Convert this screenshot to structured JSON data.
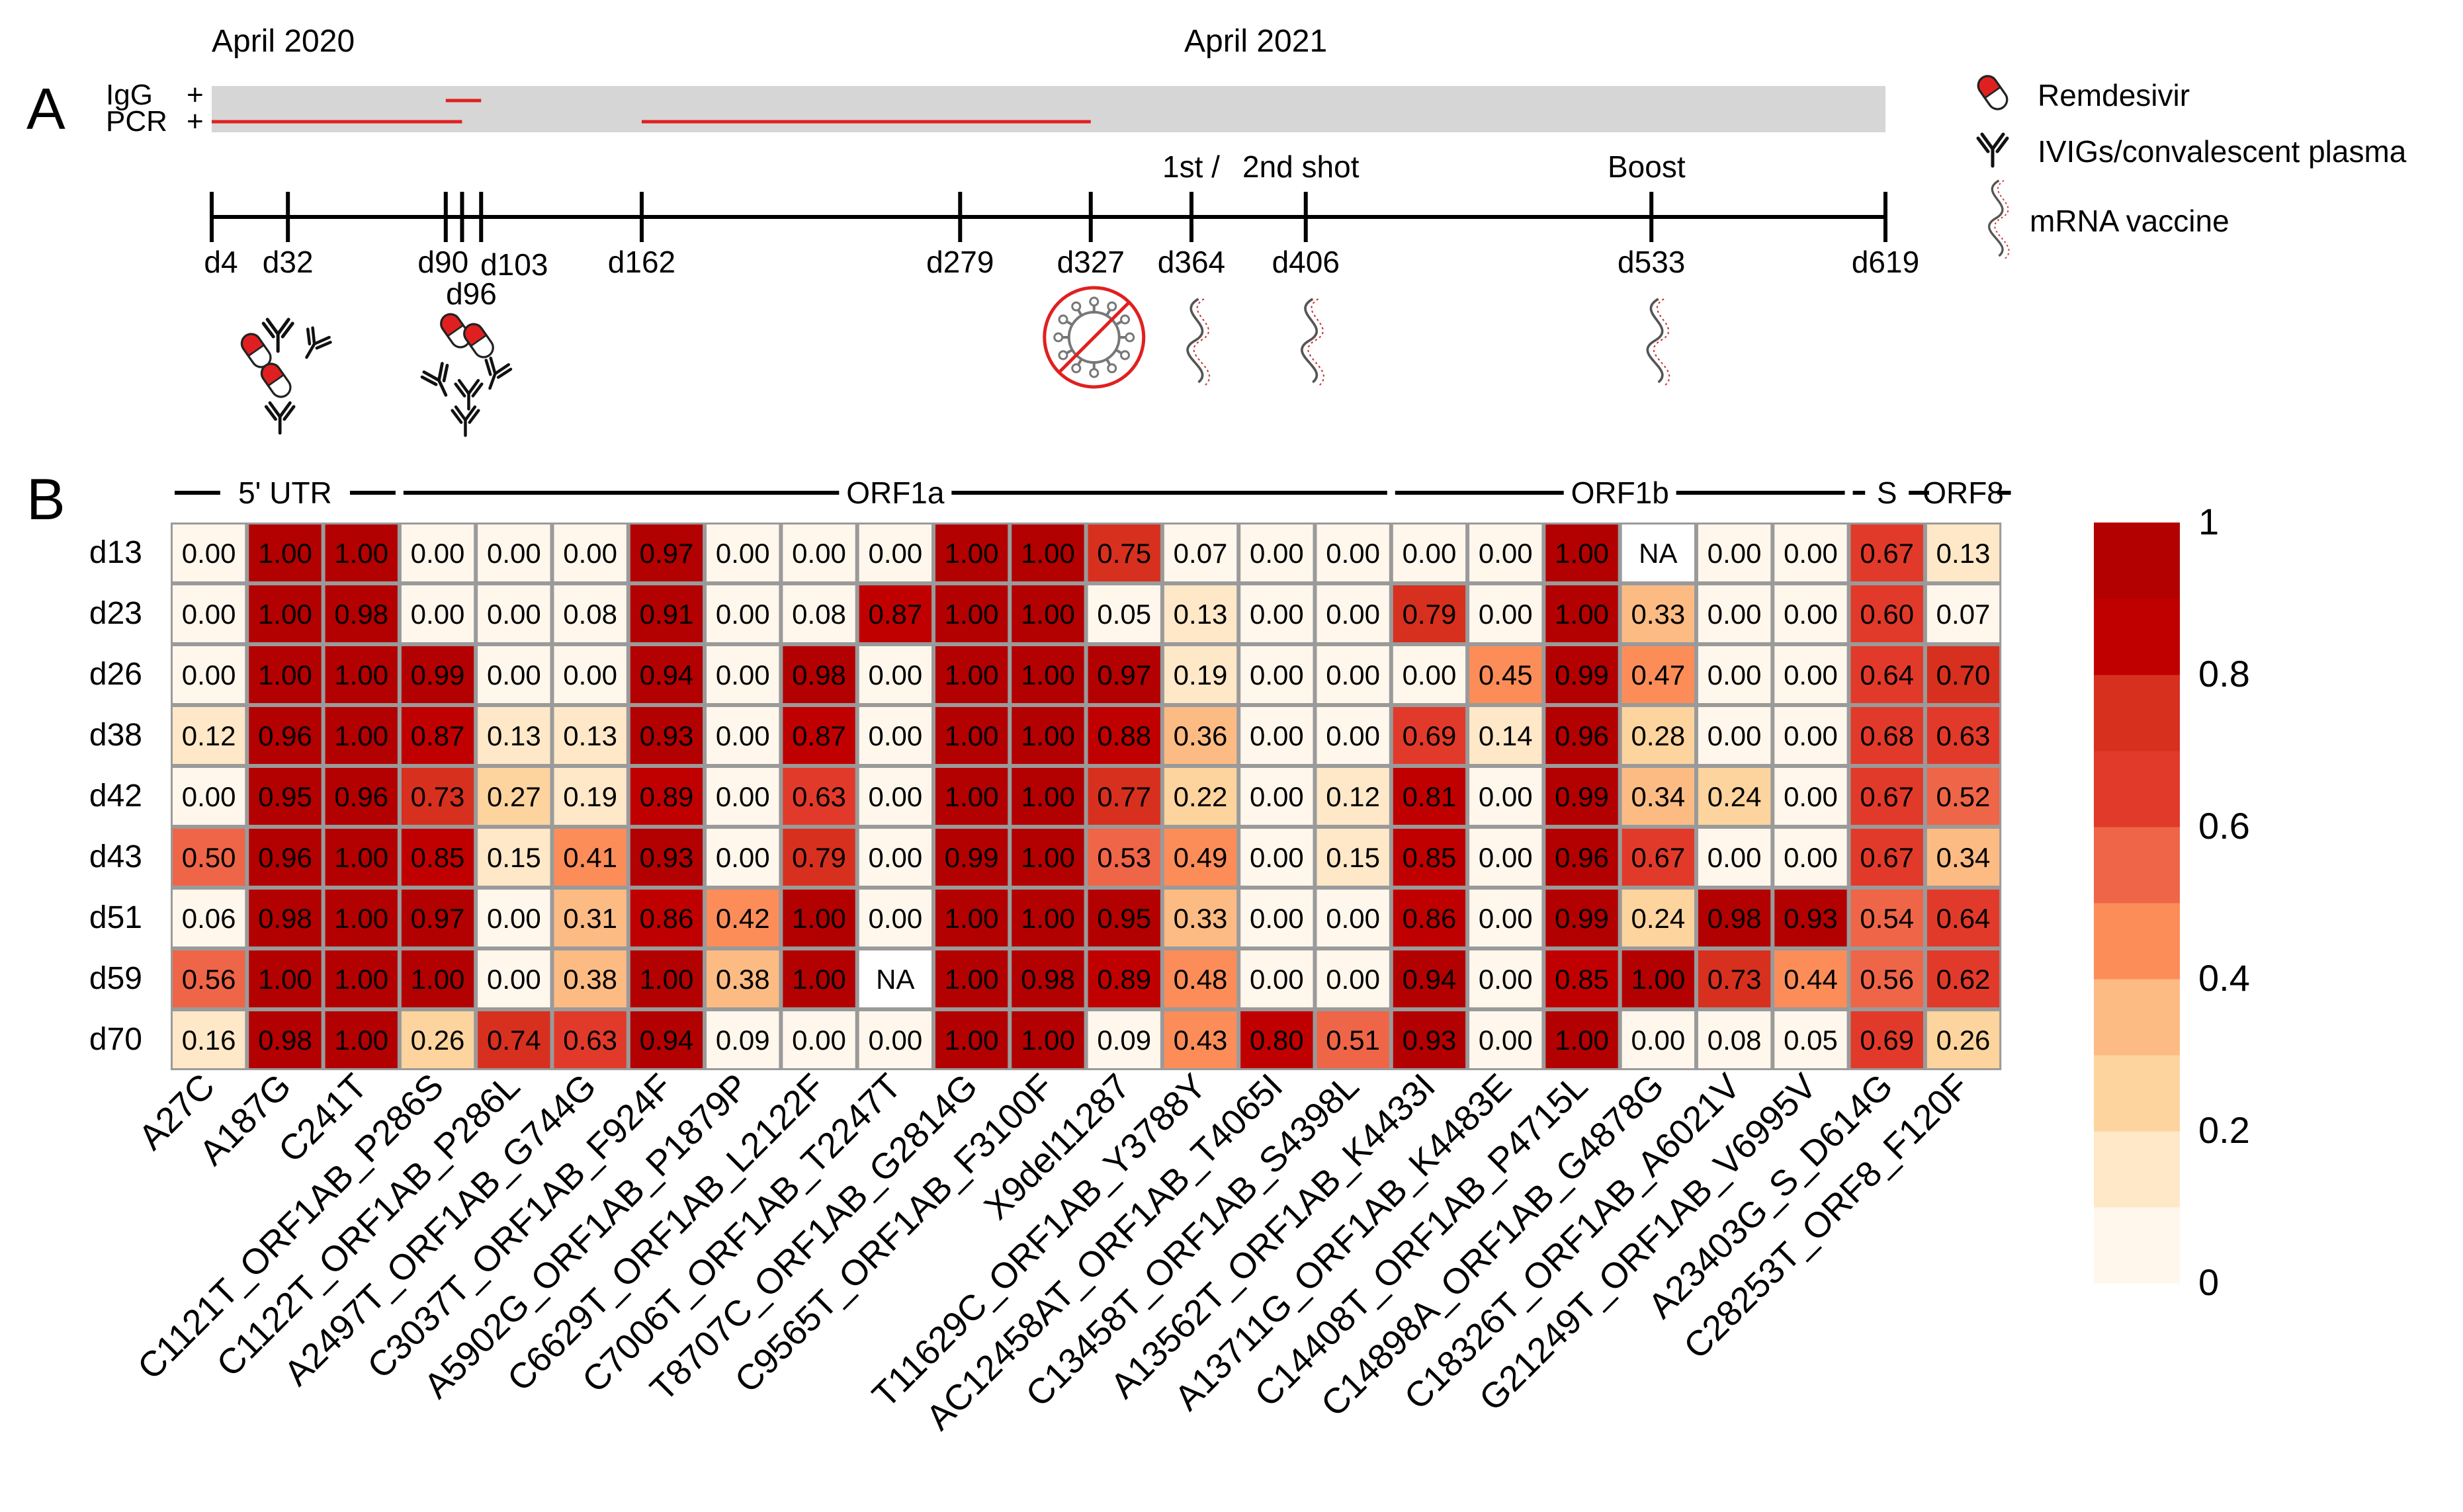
{
  "panel_a": {
    "label": "A",
    "dates": {
      "start": "April 2020",
      "mid": "April 2021"
    },
    "tracks": [
      {
        "label": "IgG",
        "sign": "+",
        "positive_intervals": [
          [
            90,
            103
          ]
        ]
      },
      {
        "label": "PCR",
        "sign": "+",
        "positive_intervals": [
          [
            4,
            96
          ],
          [
            162,
            327
          ]
        ]
      }
    ],
    "track_end_day": 619,
    "days": [
      {
        "day": 4,
        "label": "d4"
      },
      {
        "day": 32,
        "label": "d32"
      },
      {
        "day": 90,
        "label": "d90"
      },
      {
        "day": 96,
        "label": "d96"
      },
      {
        "day": 103,
        "label": "d103"
      },
      {
        "day": 162,
        "label": "d162"
      },
      {
        "day": 279,
        "label": "d279"
      },
      {
        "day": 327,
        "label": "d327"
      },
      {
        "day": 364,
        "label": "d364"
      },
      {
        "day": 406,
        "label": "d406"
      },
      {
        "day": 533,
        "label": "d533"
      },
      {
        "day": 619,
        "label": "d619"
      }
    ],
    "shot_labels": {
      "first": "1st /",
      "second": "2nd shot",
      "boost": "Boost"
    },
    "events": [
      {
        "day": 32,
        "kind": "remdesivir+ivig"
      },
      {
        "day": 96,
        "kind": "remdesivir+ivig"
      },
      {
        "day": 327,
        "kind": "virus-cleared"
      },
      {
        "day": 364,
        "kind": "vaccine"
      },
      {
        "day": 406,
        "kind": "vaccine"
      },
      {
        "day": 533,
        "kind": "vaccine"
      }
    ],
    "legend": [
      {
        "icon": "pill-icon",
        "label": "Remdesivir"
      },
      {
        "icon": "antibody-icon",
        "label": "IVIGs/convalescent plasma"
      },
      {
        "icon": "mrna-icon",
        "label": "mRNA vaccine"
      }
    ]
  },
  "chart_data": {
    "type": "heatmap",
    "panel_label": "B",
    "title": "",
    "rows": [
      "d13",
      "d23",
      "d26",
      "d38",
      "d42",
      "d43",
      "d51",
      "d59",
      "d70"
    ],
    "columns": [
      "A27C",
      "A187G",
      "C241T",
      "C1121T_ORF1AB_P286S",
      "C1122T_ORF1AB_P286L",
      "A2497T_ORF1AB_G744G",
      "C3037T_ORF1AB_F924F",
      "A5902G_ORF1AB_P1879P",
      "C6629T_ORF1AB_L2122F",
      "C7006T_ORF1AB_T2247T",
      "T8707C_ORF1AB_G2814G",
      "C9565T_ORF1AB_F3100F",
      "X9del11287",
      "T11629C_ORF1AB_Y3788Y",
      "AC12458AT_ORF1AB_T4065I",
      "C13458T_ORF1AB_S4398L",
      "A13562T_ORF1AB_K4433I",
      "A13711G_ORF1AB_K4483E",
      "C14408T_ORF1AB_P4715L",
      "C14898A_ORF1AB_G4878G",
      "C18326T_ORF1AB_A6021V",
      "G21249T_ORF1AB_V6995V",
      "A23403G_S_D614G",
      "C28253T_ORF8_F120F"
    ],
    "values": [
      [
        "0.00",
        "1.00",
        "1.00",
        "0.00",
        "0.00",
        "0.00",
        "0.97",
        "0.00",
        "0.00",
        "0.00",
        "1.00",
        "1.00",
        "0.75",
        "0.07",
        "0.00",
        "0.00",
        "0.00",
        "0.00",
        "1.00",
        "NA",
        "0.00",
        "0.00",
        "0.67",
        "0.13"
      ],
      [
        "0.00",
        "1.00",
        "0.98",
        "0.00",
        "0.00",
        "0.08",
        "0.91",
        "0.00",
        "0.08",
        "0.87",
        "1.00",
        "1.00",
        "0.05",
        "0.13",
        "0.00",
        "0.00",
        "0.79",
        "0.00",
        "1.00",
        "0.33",
        "0.00",
        "0.00",
        "0.60",
        "0.07"
      ],
      [
        "0.00",
        "1.00",
        "1.00",
        "0.99",
        "0.00",
        "0.00",
        "0.94",
        "0.00",
        "0.98",
        "0.00",
        "1.00",
        "1.00",
        "0.97",
        "0.19",
        "0.00",
        "0.00",
        "0.00",
        "0.45",
        "0.99",
        "0.47",
        "0.00",
        "0.00",
        "0.64",
        "0.70"
      ],
      [
        "0.12",
        "0.96",
        "1.00",
        "0.87",
        "0.13",
        "0.13",
        "0.93",
        "0.00",
        "0.87",
        "0.00",
        "1.00",
        "1.00",
        "0.88",
        "0.36",
        "0.00",
        "0.00",
        "0.69",
        "0.14",
        "0.96",
        "0.28",
        "0.00",
        "0.00",
        "0.68",
        "0.63"
      ],
      [
        "0.00",
        "0.95",
        "0.96",
        "0.73",
        "0.27",
        "0.19",
        "0.89",
        "0.00",
        "0.63",
        "0.00",
        "1.00",
        "1.00",
        "0.77",
        "0.22",
        "0.00",
        "0.12",
        "0.81",
        "0.00",
        "0.99",
        "0.34",
        "0.24",
        "0.00",
        "0.67",
        "0.52"
      ],
      [
        "0.50",
        "0.96",
        "1.00",
        "0.85",
        "0.15",
        "0.41",
        "0.93",
        "0.00",
        "0.79",
        "0.00",
        "0.99",
        "1.00",
        "0.53",
        "0.49",
        "0.00",
        "0.15",
        "0.85",
        "0.00",
        "0.96",
        "0.67",
        "0.00",
        "0.00",
        "0.67",
        "0.34"
      ],
      [
        "0.06",
        "0.98",
        "1.00",
        "0.97",
        "0.00",
        "0.31",
        "0.86",
        "0.42",
        "1.00",
        "0.00",
        "1.00",
        "1.00",
        "0.95",
        "0.33",
        "0.00",
        "0.00",
        "0.86",
        "0.00",
        "0.99",
        "0.24",
        "0.98",
        "0.93",
        "0.54",
        "0.64"
      ],
      [
        "0.56",
        "1.00",
        "1.00",
        "1.00",
        "0.00",
        "0.38",
        "1.00",
        "0.38",
        "1.00",
        "NA",
        "1.00",
        "0.98",
        "0.89",
        "0.48",
        "0.00",
        "0.00",
        "0.94",
        "0.00",
        "0.85",
        "1.00",
        "0.73",
        "0.44",
        "0.56",
        "0.62"
      ],
      [
        "0.16",
        "0.98",
        "1.00",
        "0.26",
        "0.74",
        "0.63",
        "0.94",
        "0.09",
        "0.00",
        "0.00",
        "1.00",
        "1.00",
        "0.09",
        "0.43",
        "0.80",
        "0.51",
        "0.93",
        "0.00",
        "1.00",
        "0.00",
        "0.08",
        "0.05",
        "0.69",
        "0.26"
      ]
    ],
    "gene_regions": [
      {
        "label": "5' UTR",
        "start": 0,
        "end": 2
      },
      {
        "label": "ORF1a",
        "start": 3,
        "end": 15
      },
      {
        "label": "ORF1b",
        "start": 16,
        "end": 21
      },
      {
        "label": "S",
        "start": 22,
        "end": 22
      },
      {
        "label": "ORF8",
        "start": 23,
        "end": 23
      }
    ],
    "colorbar": {
      "min": 0,
      "max": 1,
      "ticks": [
        "1",
        "0.8",
        "0.6",
        "0.4",
        "0.2",
        "0"
      ]
    },
    "colors": {
      "scale": [
        "#fff7ec",
        "#fee8c8",
        "#fdd49e",
        "#fdbb84",
        "#fc8d59",
        "#ef6548",
        "#e23a2a",
        "#d7301f",
        "#c00000",
        "#b30000"
      ],
      "na_fill": "#ffffff",
      "grid_stroke": "#a0a0a0",
      "accent_red": "#e02020",
      "track_gray": "#d6d6d6"
    }
  }
}
